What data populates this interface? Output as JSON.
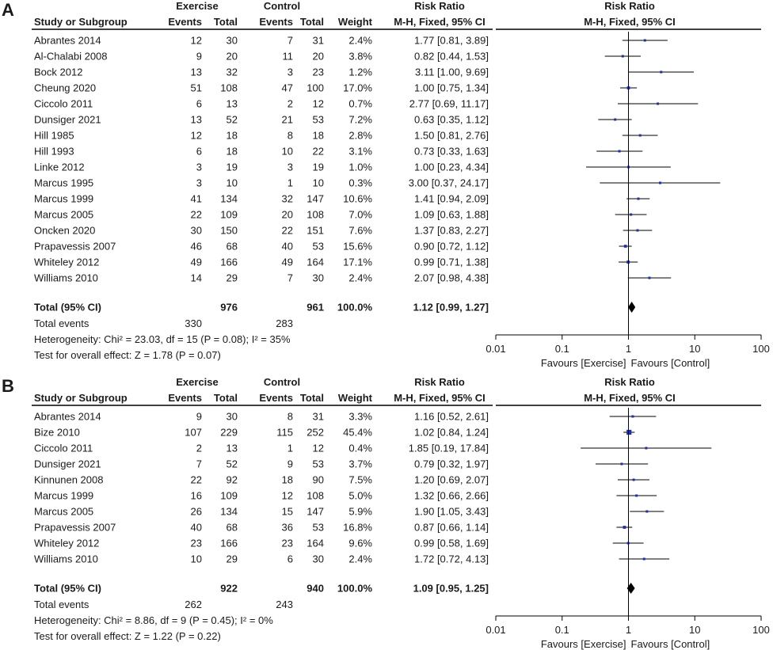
{
  "chart_data": [
    {
      "type": "forest",
      "panel_label": "A",
      "title": "",
      "header": {
        "group1": "Exercise",
        "group2": "Control",
        "study_col": "Study or Subgroup",
        "events": "Events",
        "total": "Total",
        "weight": "Weight",
        "rr_title": "Risk Ratio",
        "rr_method": "M-H, Fixed, 95% CI"
      },
      "studies": [
        {
          "name": "Abrantes 2014",
          "e1": 12,
          "n1": 30,
          "e2": 7,
          "n2": 31,
          "weight": "2.4%",
          "ci_text": "1.77 [0.81, 3.89]",
          "rr": 1.77,
          "lo": 0.81,
          "hi": 3.89,
          "w": 2.4
        },
        {
          "name": "Al-Chalabi 2008",
          "e1": 9,
          "n1": 20,
          "e2": 11,
          "n2": 20,
          "weight": "3.8%",
          "ci_text": "0.82 [0.44, 1.53]",
          "rr": 0.82,
          "lo": 0.44,
          "hi": 1.53,
          "w": 3.8
        },
        {
          "name": "Bock 2012",
          "e1": 13,
          "n1": 32,
          "e2": 3,
          "n2": 23,
          "weight": "1.2%",
          "ci_text": "3.11 [1.00, 9.69]",
          "rr": 3.11,
          "lo": 1.0,
          "hi": 9.69,
          "w": 1.2
        },
        {
          "name": "Cheung 2020",
          "e1": 51,
          "n1": 108,
          "e2": 47,
          "n2": 100,
          "weight": "17.0%",
          "ci_text": "1.00 [0.75, 1.34]",
          "rr": 1.0,
          "lo": 0.75,
          "hi": 1.34,
          "w": 17.0
        },
        {
          "name": "Ciccolo 2011",
          "e1": 6,
          "n1": 13,
          "e2": 2,
          "n2": 12,
          "weight": "0.7%",
          "ci_text": "2.77 [0.69, 11.17]",
          "rr": 2.77,
          "lo": 0.69,
          "hi": 11.17,
          "w": 0.7
        },
        {
          "name": "Dunsiger 2021",
          "e1": 13,
          "n1": 52,
          "e2": 21,
          "n2": 53,
          "weight": "7.2%",
          "ci_text": "0.63 [0.35, 1.12]",
          "rr": 0.63,
          "lo": 0.35,
          "hi": 1.12,
          "w": 7.2
        },
        {
          "name": "Hill 1985",
          "e1": 12,
          "n1": 18,
          "e2": 8,
          "n2": 18,
          "weight": "2.8%",
          "ci_text": "1.50 [0.81, 2.76]",
          "rr": 1.5,
          "lo": 0.81,
          "hi": 2.76,
          "w": 2.8
        },
        {
          "name": "Hill 1993",
          "e1": 6,
          "n1": 18,
          "e2": 10,
          "n2": 22,
          "weight": "3.1%",
          "ci_text": "0.73 [0.33, 1.63]",
          "rr": 0.73,
          "lo": 0.33,
          "hi": 1.63,
          "w": 3.1
        },
        {
          "name": "Linke 2012",
          "e1": 3,
          "n1": 19,
          "e2": 3,
          "n2": 19,
          "weight": "1.0%",
          "ci_text": "1.00 [0.23, 4.34]",
          "rr": 1.0,
          "lo": 0.23,
          "hi": 4.34,
          "w": 1.0
        },
        {
          "name": "Marcus 1995",
          "e1": 3,
          "n1": 10,
          "e2": 1,
          "n2": 10,
          "weight": "0.3%",
          "ci_text": "3.00 [0.37, 24.17]",
          "rr": 3.0,
          "lo": 0.37,
          "hi": 24.17,
          "w": 0.3
        },
        {
          "name": "Marcus 1999",
          "e1": 41,
          "n1": 134,
          "e2": 32,
          "n2": 147,
          "weight": "10.6%",
          "ci_text": "1.41 [0.94, 2.09]",
          "rr": 1.41,
          "lo": 0.94,
          "hi": 2.09,
          "w": 10.6
        },
        {
          "name": "Marcus 2005",
          "e1": 22,
          "n1": 109,
          "e2": 20,
          "n2": 108,
          "weight": "7.0%",
          "ci_text": "1.09 [0.63, 1.88]",
          "rr": 1.09,
          "lo": 0.63,
          "hi": 1.88,
          "w": 7.0
        },
        {
          "name": "Oncken 2020",
          "e1": 30,
          "n1": 150,
          "e2": 22,
          "n2": 151,
          "weight": "7.6%",
          "ci_text": "1.37 [0.83, 2.27]",
          "rr": 1.37,
          "lo": 0.83,
          "hi": 2.27,
          "w": 7.6
        },
        {
          "name": "Prapavessis 2007",
          "e1": 46,
          "n1": 68,
          "e2": 40,
          "n2": 53,
          "weight": "15.6%",
          "ci_text": "0.90 [0.72, 1.12]",
          "rr": 0.9,
          "lo": 0.72,
          "hi": 1.12,
          "w": 15.6
        },
        {
          "name": "Whiteley 2012",
          "e1": 49,
          "n1": 166,
          "e2": 49,
          "n2": 164,
          "weight": "17.1%",
          "ci_text": "0.99 [0.71, 1.38]",
          "rr": 0.99,
          "lo": 0.71,
          "hi": 1.38,
          "w": 17.1
        },
        {
          "name": "Williams 2010",
          "e1": 14,
          "n1": 29,
          "e2": 7,
          "n2": 30,
          "weight": "2.4%",
          "ci_text": "2.07 [0.98, 4.38]",
          "rr": 2.07,
          "lo": 0.98,
          "hi": 4.38,
          "w": 2.4
        }
      ],
      "total": {
        "label": "Total (95% CI)",
        "n1": 976,
        "n2": 961,
        "weight": "100.0%",
        "ci_text": "1.12 [0.99, 1.27]",
        "rr": 1.12,
        "lo": 0.99,
        "hi": 1.27
      },
      "total_events": {
        "label": "Total events",
        "e1": 330,
        "e2": 283
      },
      "heterogeneity": "Heterogeneity: Chi² = 23.03, df = 15 (P = 0.08); I² = 35%",
      "overall_effect": "Test for overall effect: Z = 1.78 (P = 0.07)",
      "axis": {
        "scale": "log",
        "range": [
          0.01,
          100
        ],
        "ticks": [
          0.01,
          0.1,
          1,
          10,
          100
        ],
        "tick_labels": [
          "0.01",
          "0.1",
          "1",
          "10",
          "100"
        ],
        "favours_left": "Favours [Exercise]",
        "favours_right": "Favours [Control]"
      },
      "colors": {
        "square": "#1f2fa6",
        "line": "#000000",
        "diamond": "#000000"
      }
    },
    {
      "type": "forest",
      "panel_label": "B",
      "title": "",
      "header": {
        "group1": "Exercise",
        "group2": "Control",
        "study_col": "Study or Subgroup",
        "events": "Events",
        "total": "Total",
        "weight": "Weight",
        "rr_title": "Risk Ratio",
        "rr_method": "M-H, Fixed, 95% CI"
      },
      "studies": [
        {
          "name": "Abrantes 2014",
          "e1": 9,
          "n1": 30,
          "e2": 8,
          "n2": 31,
          "weight": "3.3%",
          "ci_text": "1.16 [0.52, 2.61]",
          "rr": 1.16,
          "lo": 0.52,
          "hi": 2.61,
          "w": 3.3
        },
        {
          "name": "Bize 2010",
          "e1": 107,
          "n1": 229,
          "e2": 115,
          "n2": 252,
          "weight": "45.4%",
          "ci_text": "1.02 [0.84, 1.24]",
          "rr": 1.02,
          "lo": 0.84,
          "hi": 1.24,
          "w": 45.4
        },
        {
          "name": "Ciccolo 2011",
          "e1": 2,
          "n1": 13,
          "e2": 1,
          "n2": 12,
          "weight": "0.4%",
          "ci_text": "1.85 [0.19, 17.84]",
          "rr": 1.85,
          "lo": 0.19,
          "hi": 17.84,
          "w": 0.4
        },
        {
          "name": "Dunsiger 2021",
          "e1": 7,
          "n1": 52,
          "e2": 9,
          "n2": 53,
          "weight": "3.7%",
          "ci_text": "0.79 [0.32, 1.97]",
          "rr": 0.79,
          "lo": 0.32,
          "hi": 1.97,
          "w": 3.7
        },
        {
          "name": "Kinnunen 2008",
          "e1": 22,
          "n1": 92,
          "e2": 18,
          "n2": 90,
          "weight": "7.5%",
          "ci_text": "1.20 [0.69, 2.07]",
          "rr": 1.2,
          "lo": 0.69,
          "hi": 2.07,
          "w": 7.5
        },
        {
          "name": "Marcus 1999",
          "e1": 16,
          "n1": 109,
          "e2": 12,
          "n2": 108,
          "weight": "5.0%",
          "ci_text": "1.32 [0.66, 2.66]",
          "rr": 1.32,
          "lo": 0.66,
          "hi": 2.66,
          "w": 5.0
        },
        {
          "name": "Marcus 2005",
          "e1": 26,
          "n1": 134,
          "e2": 15,
          "n2": 147,
          "weight": "5.9%",
          "ci_text": "1.90 [1.05, 3.43]",
          "rr": 1.9,
          "lo": 1.05,
          "hi": 3.43,
          "w": 5.9
        },
        {
          "name": "Prapavessis 2007",
          "e1": 40,
          "n1": 68,
          "e2": 36,
          "n2": 53,
          "weight": "16.8%",
          "ci_text": "0.87 [0.66, 1.14]",
          "rr": 0.87,
          "lo": 0.66,
          "hi": 1.14,
          "w": 16.8
        },
        {
          "name": "Whiteley 2012",
          "e1": 23,
          "n1": 166,
          "e2": 23,
          "n2": 164,
          "weight": "9.6%",
          "ci_text": "0.99 [0.58, 1.69]",
          "rr": 0.99,
          "lo": 0.58,
          "hi": 1.69,
          "w": 9.6
        },
        {
          "name": "Williams 2010",
          "e1": 10,
          "n1": 29,
          "e2": 6,
          "n2": 30,
          "weight": "2.4%",
          "ci_text": "1.72 [0.72, 4.13]",
          "rr": 1.72,
          "lo": 0.72,
          "hi": 4.13,
          "w": 2.4
        }
      ],
      "total": {
        "label": "Total (95% CI)",
        "n1": 922,
        "n2": 940,
        "weight": "100.0%",
        "ci_text": "1.09 [0.95, 1.25]",
        "rr": 1.09,
        "lo": 0.95,
        "hi": 1.25
      },
      "total_events": {
        "label": "Total events",
        "e1": 262,
        "e2": 243
      },
      "heterogeneity": "Heterogeneity: Chi² = 8.86, df = 9 (P = 0.45); I² = 0%",
      "overall_effect": "Test for overall effect: Z = 1.22 (P = 0.22)",
      "axis": {
        "scale": "log",
        "range": [
          0.01,
          100
        ],
        "ticks": [
          0.01,
          0.1,
          1,
          10,
          100
        ],
        "tick_labels": [
          "0.01",
          "0.1",
          "1",
          "10",
          "100"
        ],
        "favours_left": "Favours [Exercise]",
        "favours_right": "Favours [Control]"
      },
      "colors": {
        "square": "#1f2fa6",
        "line": "#000000",
        "diamond": "#000000"
      }
    }
  ]
}
